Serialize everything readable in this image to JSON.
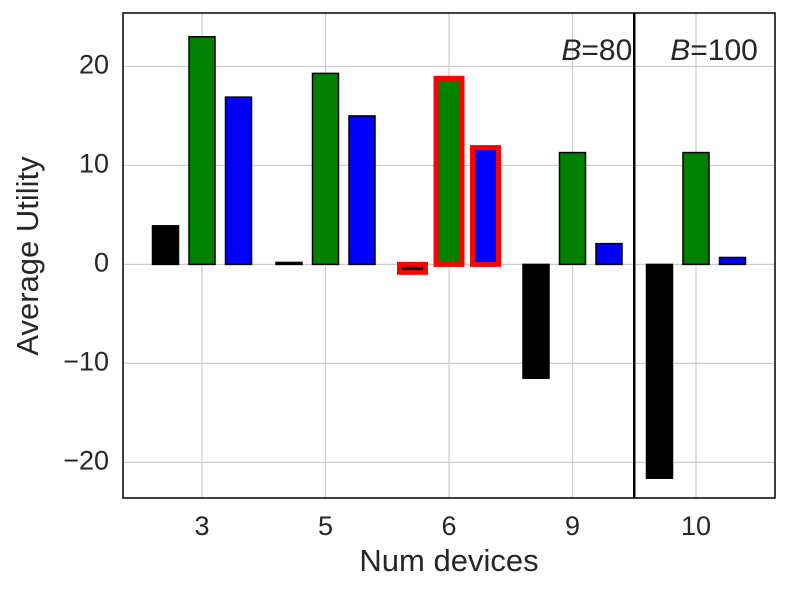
{
  "chart_data": {
    "type": "bar",
    "x_label": "Num devices",
    "y_label": "Average Utility",
    "categories": [
      "3",
      "5",
      "6",
      "9",
      "10"
    ],
    "series": [
      {
        "color": "#000000",
        "values": [
          3.9,
          0.2,
          -0.8,
          -11.5,
          -21.6
        ]
      },
      {
        "color": "#008000",
        "values": [
          23.0,
          19.3,
          18.8,
          11.3,
          11.3
        ]
      },
      {
        "color": "#0000ff",
        "values": [
          16.9,
          15.0,
          11.8,
          2.1,
          0.7
        ]
      }
    ],
    "ylim": [
      -23.6,
      25.4
    ],
    "yticks": [
      {
        "value": -20,
        "label": "−20"
      },
      {
        "value": -10,
        "label": "−10"
      },
      0,
      10,
      20
    ],
    "grid": true,
    "highlight_category": "6",
    "highlight_color": "#ff0000",
    "divider_after": "9",
    "annotations": [
      "B=80",
      "B=100"
    ]
  }
}
